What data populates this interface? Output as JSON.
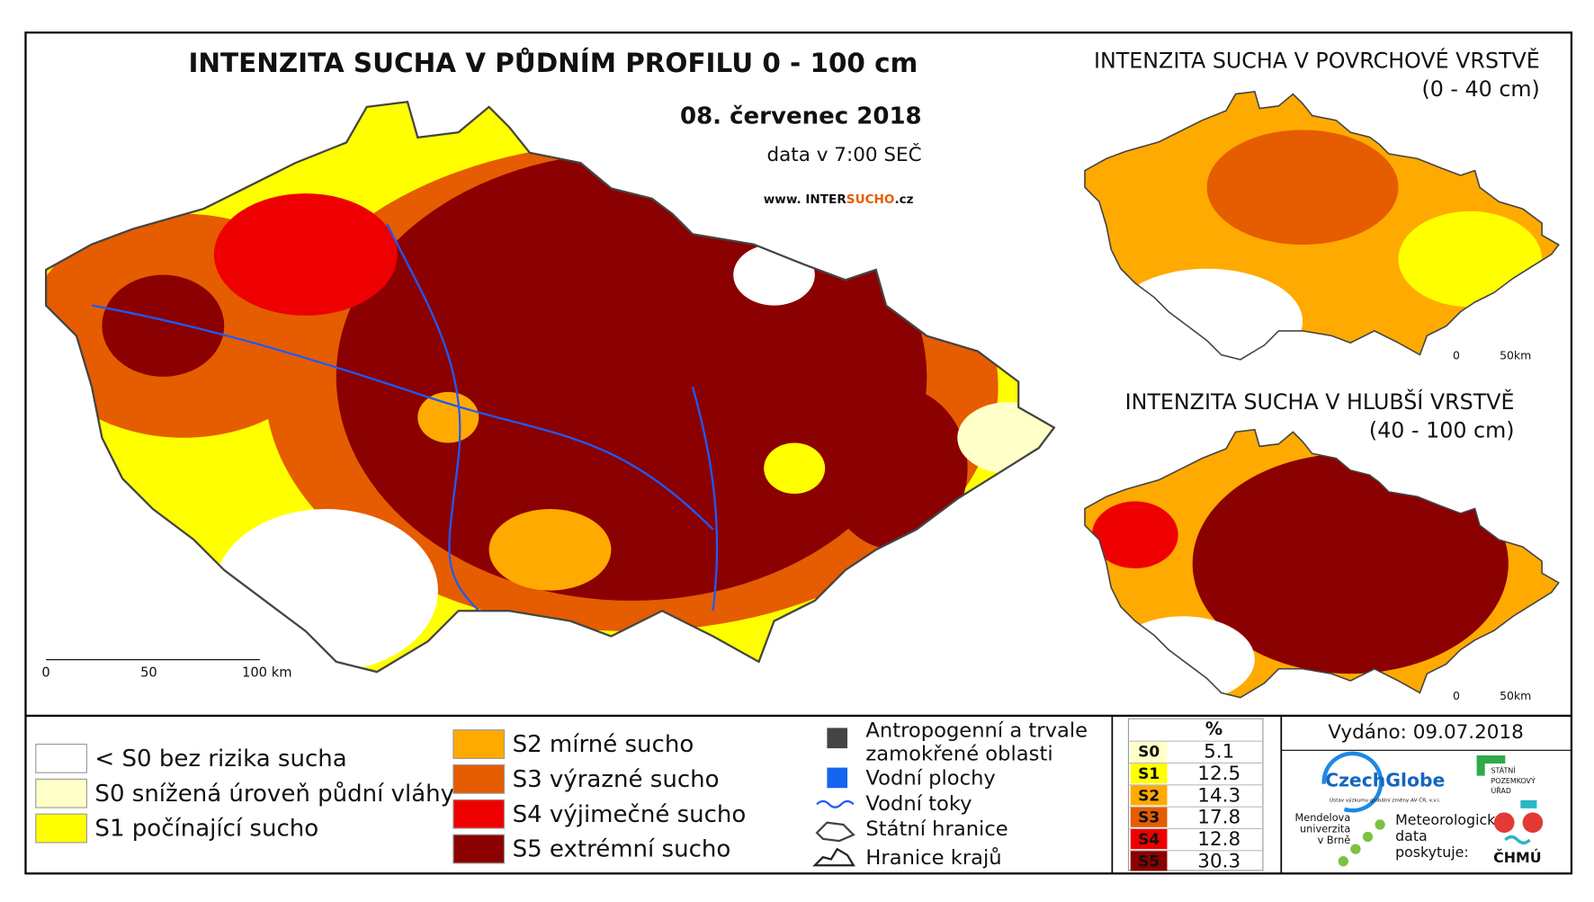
{
  "header": {
    "title": "INTENZITA SUCHA V PŮDNÍM PROFILU 0 - 100 cm",
    "date": "08. červenec 2018",
    "time": "data v 7:00 SEČ",
    "website": [
      "www. INTER",
      "SUCHO",
      ".cz"
    ]
  },
  "main_map": {
    "scale_labels": [
      "0",
      "50",
      "100 km"
    ]
  },
  "insets": [
    {
      "title": "INTENZITA SUCHA V POVRCHOVÉ VRSTVĚ",
      "subtitle": "(0 - 40 cm)",
      "scale_labels": [
        "0",
        "50km"
      ]
    },
    {
      "title": "INTENZITA SUCHA V HLUBŠÍ VRSTVĚ",
      "subtitle": "(40 - 100 cm)",
      "scale_labels": [
        "0",
        "50km"
      ]
    }
  ],
  "legend": {
    "classes": [
      {
        "label": "< S0 bez rizika sucha",
        "color": "#ffffff"
      },
      {
        "label": "S0 snížená úroveň půdní vláhy",
        "color": "#ffffc8"
      },
      {
        "label": "S1 počínající sucho",
        "color": "#ffff00"
      },
      {
        "label": "S2 mírné sucho",
        "color": "#ffaa00"
      },
      {
        "label": "S3 výrazné sucho",
        "color": "#e65c00"
      },
      {
        "label": "S4 výjimečné sucho",
        "color": "#ee0000"
      },
      {
        "label": "S5 extrémní sucho",
        "color": "#8b0000"
      }
    ],
    "features": [
      [
        "Antropogenní a trvale",
        "zamokřené oblasti"
      ],
      [
        "Vodní plochy"
      ],
      [
        "Vodní toky"
      ],
      [
        "Státní hranice"
      ],
      [
        "Hranice krajů"
      ]
    ]
  },
  "table": {
    "header": "%",
    "rows": [
      {
        "code": "S0",
        "value": 5.1,
        "color": "#ffffc8"
      },
      {
        "code": "S1",
        "value": 12.5,
        "color": "#ffff00"
      },
      {
        "code": "S2",
        "value": 14.3,
        "color": "#ffaa00"
      },
      {
        "code": "S3",
        "value": 17.8,
        "color": "#e65c00"
      },
      {
        "code": "S4",
        "value": 12.8,
        "color": "#ee0000"
      },
      {
        "code": "S5",
        "value": 30.3,
        "color": "#8b0000"
      }
    ]
  },
  "issued": "Vydáno: 09.07.2018",
  "logos": {
    "czechglobe": "CzechGlobe",
    "czechglobe_sub": "Ústav výzkumu globální změny AV ČR, v.v.i.",
    "spu": [
      "STÁTNÍ",
      "POZEMKOVÝ",
      "ÚŘAD"
    ],
    "mendelu": [
      "Mendelova",
      "univerzita",
      "v Brně"
    ],
    "chmu_text": [
      "Meteorologická",
      "data",
      "poskytuje:"
    ],
    "chmu": "ČHMÚ"
  }
}
